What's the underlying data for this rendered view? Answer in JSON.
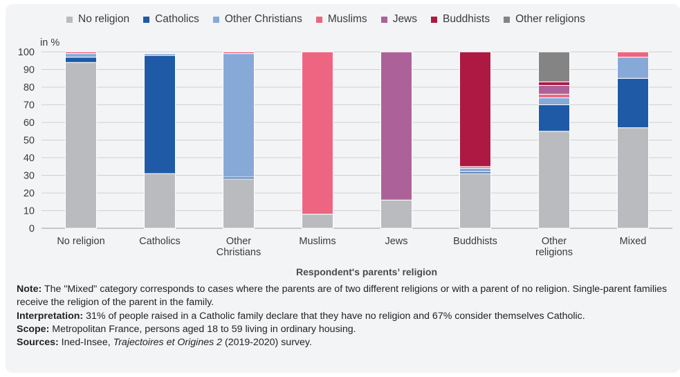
{
  "chart_data": {
    "type": "bar",
    "stacked": true,
    "unit_label": "in %",
    "xlabel": "Respondent's parents’ religion",
    "ylim": [
      0,
      100
    ],
    "yticks": [
      0,
      10,
      20,
      30,
      40,
      50,
      60,
      70,
      80,
      90,
      100
    ],
    "grid": true,
    "legend_position": "top",
    "categories": [
      [
        "No religion"
      ],
      [
        "Catholics"
      ],
      [
        "Other",
        "Christians"
      ],
      [
        "Muslims"
      ],
      [
        "Jews"
      ],
      [
        "Buddhists"
      ],
      [
        "Other",
        "religions"
      ],
      [
        "Mixed"
      ]
    ],
    "series": [
      {
        "name": "No religion",
        "color": "#babbbf",
        "values": [
          94,
          31,
          28,
          8,
          16,
          31,
          55,
          57
        ]
      },
      {
        "name": "Catholics",
        "color": "#1f5aa6",
        "values": [
          3,
          67,
          1,
          0,
          0,
          1,
          15,
          28
        ]
      },
      {
        "name": "Other Christians",
        "color": "#86a9d8",
        "values": [
          2,
          1,
          70,
          0,
          0,
          2,
          4,
          12
        ]
      },
      {
        "name": "Muslims",
        "color": "#ee6581",
        "values": [
          1,
          0,
          1,
          92,
          0,
          1,
          2,
          3
        ]
      },
      {
        "name": "Jews",
        "color": "#ac6298",
        "values": [
          0,
          0,
          0,
          0,
          84,
          0,
          5,
          0
        ]
      },
      {
        "name": "Buddhists",
        "color": "#ad1942",
        "values": [
          0,
          0,
          0,
          0,
          0,
          65,
          2,
          0
        ]
      },
      {
        "name": "Other religions",
        "color": "#848484",
        "values": [
          0,
          0,
          0,
          0,
          0,
          0,
          17,
          0
        ]
      }
    ]
  },
  "notes": {
    "note_label": "Note:",
    "note_text": " The \"Mixed\" category corresponds to cases where the parents are of two different religions or with a parent of no religion. Single-parent families receive the religion of the parent in the family.",
    "interp_label": "Interpretation:",
    "interp_text": " 31% of people raised in a Catholic family declare that they have no religion and 67% consider themselves Catholic.",
    "scope_label": "Scope:",
    "scope_text": " Metropolitan France, persons aged 18 to 59 living in ordinary housing.",
    "sources_label": "Sources:",
    "sources_pre": " Ined-Insee, ",
    "sources_italic": "Trajectoires et Origines 2",
    "sources_post": " (2019-2020) survey."
  }
}
